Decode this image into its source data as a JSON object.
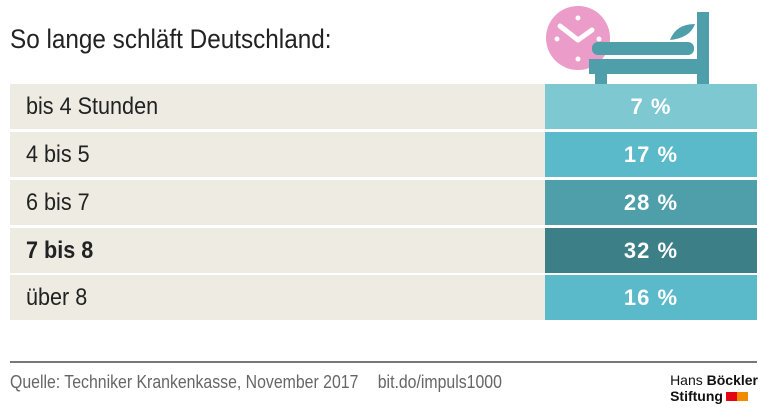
{
  "chart_data": {
    "type": "table",
    "title": "So lange schläft Deutschland:",
    "categories": [
      "bis 4 Stunden",
      "4 bis 5",
      "6 bis 7",
      "7 bis 8",
      "über 8"
    ],
    "values": [
      7,
      17,
      28,
      32,
      16
    ],
    "value_labels": [
      "7 %",
      "17 %",
      "28 %",
      "32 %",
      "16 %"
    ],
    "highlighted": "7 bis 8",
    "colors": [
      "#7ec8d1",
      "#5bbac9",
      "#4f9fab",
      "#3d7f87",
      "#5bbac9"
    ]
  },
  "icons": [
    "clock-icon",
    "bed-icon"
  ],
  "footer": {
    "source": "Quelle: Techniker Krankenkasse, November 2017",
    "link": "bit.do/impuls1000"
  },
  "logo": {
    "line1_a": "Hans",
    "line1_b": "Böckler",
    "line2": "Stiftung",
    "colors": [
      "#e30613",
      "#f08a00"
    ]
  }
}
